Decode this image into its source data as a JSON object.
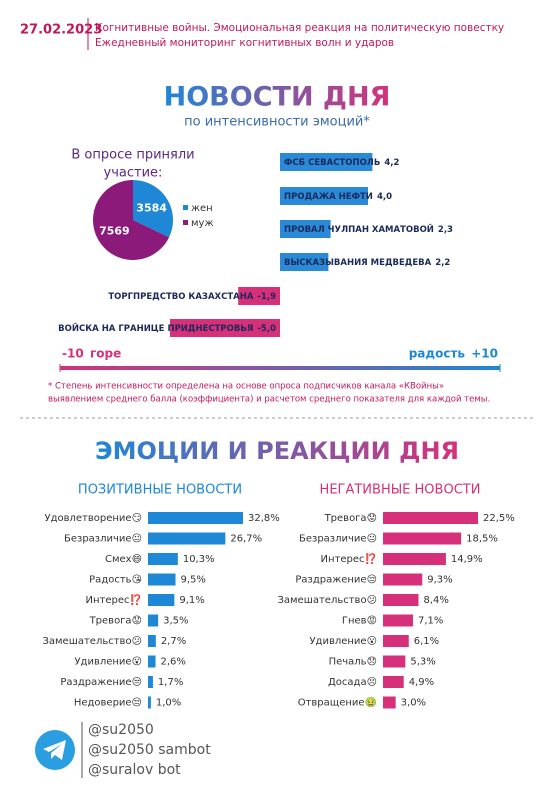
{
  "header": {
    "date": "27.02.2023",
    "lines": [
      "Когнитивные войны. Эмоциональная реакция на политическую повестку",
      "Ежедневный мониторинг когнитивных волн и ударов"
    ]
  },
  "chart_data": [
    {
      "type": "pie",
      "title": [
        "В опросе приняли",
        "участие:"
      ],
      "categories": [
        "жен",
        "муж"
      ],
      "values": [
        3584,
        7569
      ],
      "colors": [
        "#1e88d6",
        "#8b1a7a"
      ]
    },
    {
      "type": "bar",
      "title": "НОВОСТИ ДНЯ",
      "subtitle": "по интенсивности эмоций*",
      "categories": [
        "ФСБ СЕВАСТОПОЛЬ",
        "ПРОДАЖА НЕФТИ",
        "ПРОВАЛ ЧУЛПАН ХАМАТОВОЙ",
        "ВЫСКАЗЫВАНИЯ МЕДВЕДЕВА",
        "ТОРГПРЕДСТВО КАЗАХСТАНА",
        "ВОЙСКА НА ГРАНИЦЕ ПРИДНЕСТРОВЬЯ"
      ],
      "values": [
        4.2,
        4.0,
        2.3,
        2.2,
        -1.9,
        -5.0
      ],
      "value_labels": [
        "4,2",
        "4,0",
        "2,3",
        "2,2",
        "-1,9",
        "-5,0"
      ],
      "colors": {
        "positive": "#2a8ad8",
        "negative": "#d6307a"
      },
      "xlim": [
        -10,
        10
      ],
      "xticks": [
        {
          "value": -10,
          "label": "-10"
        },
        {
          "value": 10,
          "label": "+10"
        }
      ],
      "axis_labels": [
        "горе",
        "радость"
      ]
    },
    {
      "type": "bar",
      "title": "ПОЗИТИВНЫЕ НОВОСТИ",
      "color": "#1e88d6",
      "categories": [
        "Удовлетворение😏",
        "Безразличие😐",
        "Смех😄",
        "Радость😘",
        "Интерес⁉️",
        "Тревога😟",
        "Замешательство😕",
        "Удивление😮",
        "Раздражение😒",
        "Недоверие😒"
      ],
      "values": [
        32.8,
        26.7,
        10.3,
        9.5,
        9.1,
        3.5,
        2.7,
        2.6,
        1.7,
        1.0
      ],
      "value_labels": [
        "32,8%",
        "26,7%",
        "10,3%",
        "9,5%",
        "9,1%",
        "3,5%",
        "2,7%",
        "2,6%",
        "1,7%",
        "1,0%"
      ]
    },
    {
      "type": "bar",
      "title": "НЕГАТИВНЫЕ НОВОСТИ",
      "color": "#d6307a",
      "categories": [
        "Тревога😟",
        "Безразличие😐",
        "Интерес⁉️",
        "Раздражение😒",
        "Замешательство😕",
        "Гнев😡",
        "Удивление😮",
        "Печаль😞",
        "Досада😣",
        "Отвращение🤢"
      ],
      "values": [
        22.5,
        18.5,
        14.9,
        9.3,
        8.4,
        7.1,
        6.1,
        5.3,
        4.9,
        3.0
      ],
      "value_labels": [
        "22,5%",
        "18,5%",
        "14,9%",
        "9,3%",
        "8,4%",
        "7,1%",
        "6,1%",
        "5,3%",
        "4,9%",
        "3,0%"
      ]
    }
  ],
  "footnote": [
    "* Степень интенсивности определена на основе опроса подписчиков канала «КВойны»",
    "выявлением среднего балла (коэффициента) и расчетом среднего показателя для каждой темы."
  ],
  "section_title": "ЭМОЦИИ И РЕАКЦИИ ДНЯ",
  "contacts": [
    "@su2050",
    "@su2050 sambot",
    "@suralov bot"
  ]
}
